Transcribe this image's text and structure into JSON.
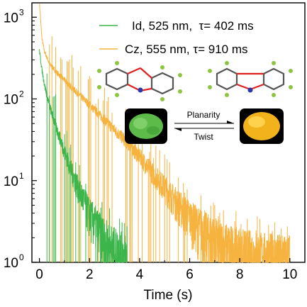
{
  "chart_data": {
    "type": "line",
    "title": "",
    "xlabel": "Time (s)",
    "ylabel": "",
    "xlim": [
      -0.3,
      10.6
    ],
    "ylim": [
      1,
      1500
    ],
    "y_scale": "log",
    "x_ticks": [
      "0",
      "2",
      "4",
      "6",
      "8",
      "10"
    ],
    "x_tick_values": [
      0,
      2,
      4,
      6,
      8,
      10
    ],
    "y_ticks": [
      {
        "base": "10",
        "exp": "0",
        "value": 1
      },
      {
        "base": "10",
        "exp": "1",
        "value": 10
      },
      {
        "base": "10",
        "exp": "2",
        "value": 100
      },
      {
        "base": "10",
        "exp": "3",
        "value": 1000
      }
    ],
    "grid": false,
    "legend_position": "top-right",
    "series": [
      {
        "name": "Id, 525 nm,  τ= 402 ms",
        "color": "#3cb54a",
        "x": [
          0,
          0.1,
          0.2,
          0.3,
          0.5,
          0.75,
          1.0,
          1.25,
          1.5,
          1.75,
          2.0,
          2.25,
          2.5,
          2.75,
          3.0,
          3.25,
          3.5
        ],
        "y": [
          390,
          230,
          150,
          110,
          65,
          38,
          23,
          14,
          9,
          6,
          4,
          3,
          2.2,
          1.7,
          1.4,
          1.2,
          1.05
        ]
      },
      {
        "name": "Cz, 555 nm, τ= 910 ms",
        "color": "#f6b33f",
        "x": [
          0,
          0.1,
          0.2,
          0.4,
          0.7,
          1.0,
          1.5,
          2.0,
          2.5,
          3.0,
          3.5,
          4.0,
          4.5,
          5.0,
          5.5,
          6.0,
          6.5,
          7.0,
          7.5,
          8.0,
          9.0,
          10.0
        ],
        "y": [
          1500,
          550,
          380,
          270,
          210,
          170,
          120,
          85,
          60,
          42,
          30,
          20,
          13,
          8.5,
          5.5,
          3.7,
          2.6,
          2.0,
          1.6,
          1.35,
          1.15,
          1.05
        ]
      }
    ],
    "inset": {
      "upper_arrow_label": "Planarity",
      "lower_arrow_label": "Twist"
    }
  }
}
